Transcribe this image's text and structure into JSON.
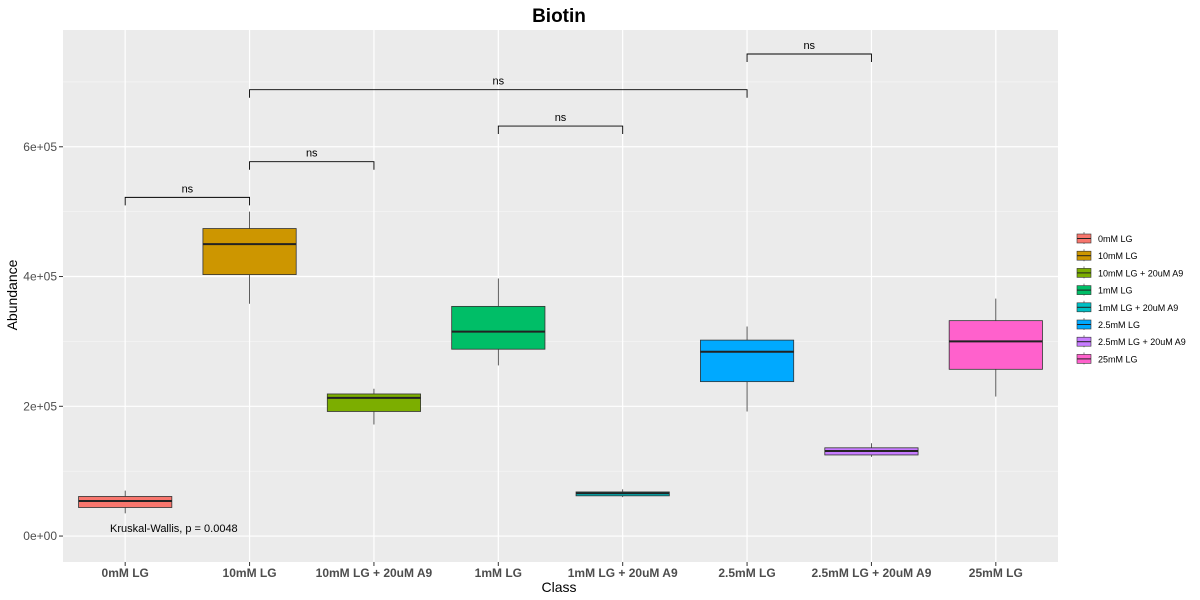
{
  "chart_data": {
    "type": "box",
    "title": "Biotin",
    "xlabel": "Class",
    "ylabel": "Abundance",
    "ylim": [
      -40000,
      780000
    ],
    "y_ticks": [
      0,
      200000,
      400000,
      600000
    ],
    "y_tick_labels": [
      "0e+00",
      "2e+05",
      "4e+05",
      "6e+05"
    ],
    "grid": true,
    "legend_position": "right",
    "categories": [
      "0mM LG",
      "10mM LG",
      "10mM LG + 20uM A9",
      "1mM LG",
      "1mM LG + 20uM A9",
      "2.5mM LG",
      "2.5mM LG + 20uM A9",
      "25mM LG"
    ],
    "colors": [
      "#F8766D",
      "#CD9600",
      "#7CAE00",
      "#00BE67",
      "#00BFC4",
      "#00A9FF",
      "#C77CFF",
      "#FF61CC"
    ],
    "boxes": [
      {
        "min": 35000,
        "q1": 44000,
        "median": 54000,
        "q3": 61000,
        "max": 70000
      },
      {
        "min": 358000,
        "q1": 403000,
        "median": 450000,
        "q3": 474000,
        "max": 500000
      },
      {
        "min": 172000,
        "q1": 192000,
        "median": 213000,
        "q3": 219000,
        "max": 227000
      },
      {
        "min": 263000,
        "q1": 288000,
        "median": 315000,
        "q3": 354000,
        "max": 397000
      },
      {
        "min": 60000,
        "q1": 62000,
        "median": 66000,
        "q3": 68000,
        "max": 72000
      },
      {
        "min": 192000,
        "q1": 238000,
        "median": 284000,
        "q3": 302000,
        "max": 323000
      },
      {
        "min": 122000,
        "q1": 125000,
        "median": 131000,
        "q3": 136000,
        "max": 143000
      },
      {
        "min": 215000,
        "q1": 257000,
        "median": 300000,
        "q3": 332000,
        "max": 366000
      }
    ],
    "comparisons": [
      {
        "from": 0,
        "to": 1,
        "y": 522000,
        "label": "ns"
      },
      {
        "from": 1,
        "to": 2,
        "y": 577000,
        "label": "ns"
      },
      {
        "from": 3,
        "to": 4,
        "y": 632000,
        "label": "ns"
      },
      {
        "from": 1,
        "to": 5,
        "y": 688000,
        "label": "ns"
      },
      {
        "from": 5,
        "to": 6,
        "y": 743000,
        "label": "ns"
      }
    ],
    "annotation": "Kruskal-Wallis, p = 0.0048",
    "legend": [
      "0mM LG",
      "10mM LG",
      "10mM LG + 20uM A9",
      "1mM LG",
      "1mM LG + 20uM A9",
      "2.5mM LG",
      "2.5mM LG + 20uM A9",
      "25mM LG"
    ]
  }
}
